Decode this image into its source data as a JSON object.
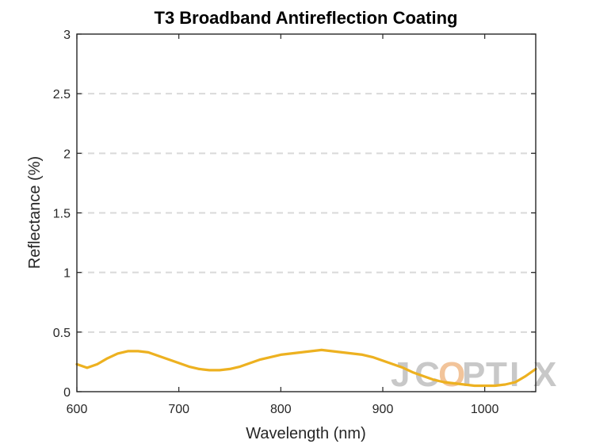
{
  "chart_data": {
    "type": "line",
    "title": "T3 Broadband Antireflection Coating",
    "xlabel": "Wavelength (nm)",
    "ylabel": "Reflectance (%)",
    "xlim": [
      600,
      1050
    ],
    "ylim": [
      0,
      3
    ],
    "xticks": [
      600,
      700,
      800,
      900,
      1000
    ],
    "yticks": [
      0,
      0.5,
      1,
      1.5,
      2,
      2.5,
      3
    ],
    "ytick_labels": [
      "0",
      "0.5",
      "1",
      "1.5",
      "2",
      "2.5",
      "3"
    ],
    "grid": "horizontal dashed",
    "legend": "none",
    "series": [
      {
        "color": "#EDB120",
        "x": [
          600,
          610,
          620,
          630,
          640,
          650,
          660,
          670,
          680,
          690,
          700,
          710,
          720,
          730,
          740,
          750,
          760,
          770,
          780,
          790,
          800,
          810,
          820,
          830,
          840,
          850,
          860,
          870,
          880,
          890,
          900,
          910,
          920,
          930,
          940,
          950,
          960,
          970,
          980,
          990,
          1000,
          1010,
          1020,
          1030,
          1040,
          1050
        ],
        "y": [
          0.23,
          0.2,
          0.23,
          0.28,
          0.32,
          0.34,
          0.34,
          0.33,
          0.3,
          0.27,
          0.24,
          0.21,
          0.19,
          0.18,
          0.18,
          0.19,
          0.21,
          0.24,
          0.27,
          0.29,
          0.31,
          0.32,
          0.33,
          0.34,
          0.35,
          0.34,
          0.33,
          0.32,
          0.31,
          0.29,
          0.26,
          0.23,
          0.2,
          0.16,
          0.13,
          0.1,
          0.08,
          0.07,
          0.06,
          0.05,
          0.05,
          0.05,
          0.06,
          0.08,
          0.13,
          0.19
        ]
      }
    ]
  },
  "watermark": {
    "text": "JCOPTIX",
    "color": "#c8c8c8",
    "accent_color": "#f2c49a"
  }
}
